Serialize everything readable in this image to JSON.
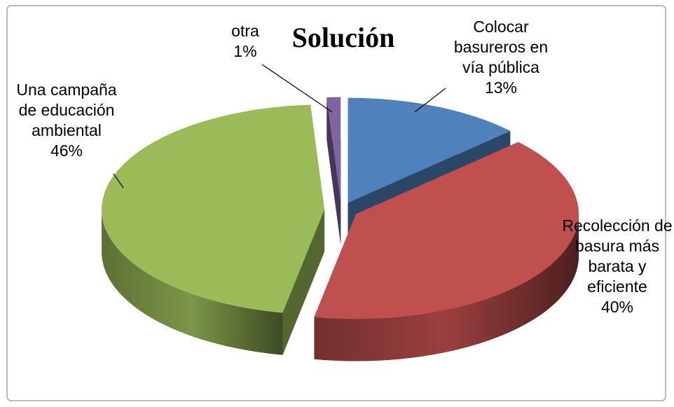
{
  "chart_data": {
    "type": "pie",
    "title": "Solución",
    "categories": [
      "Colocar basureros en vía pública",
      "Recolección de basura más barata y eficiente",
      "Una campaña de educación ambiental",
      "otra"
    ],
    "values": [
      13,
      40,
      46,
      1
    ],
    "value_labels": [
      "13%",
      "40%",
      "46%",
      "1%"
    ],
    "colors": [
      "#4f81bd",
      "#c0504d",
      "#9bbb59",
      "#8064a2"
    ]
  }
}
